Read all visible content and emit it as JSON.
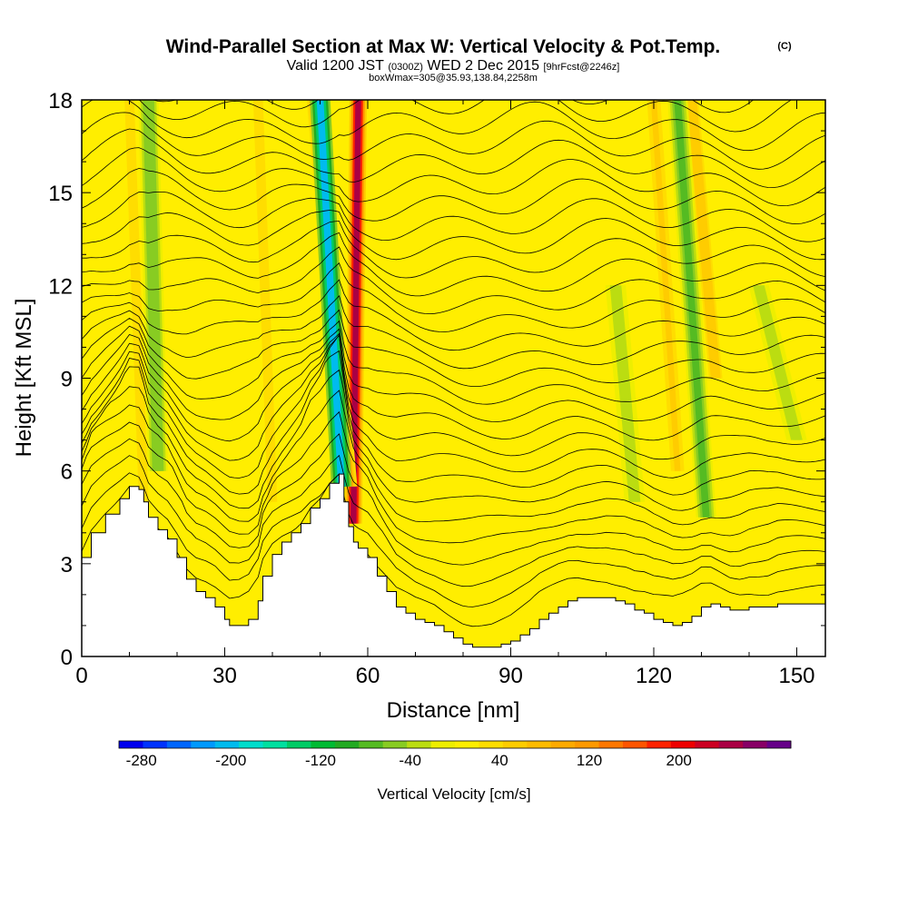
{
  "title": {
    "main": "Wind-Parallel Section at Max W: Vertical Velocity & Pot.Temp.",
    "copyright": "(C)",
    "valid_prefix": "Valid 1200 JST",
    "valid_utc": "(0300Z)",
    "valid_date": "WED 2 Dec 2015",
    "forecast": "[9hrFcst@2246z]",
    "box": "boxWmax=305@35.93,138.84,2258m"
  },
  "chart_data": {
    "type": "heatmap",
    "xlabel": "Distance [nm]",
    "ylabel": "Height [Kft MSL]",
    "xlim": [
      0,
      156
    ],
    "ylim": [
      0,
      18
    ],
    "x_ticks": [
      "0",
      "30",
      "60",
      "90",
      "120",
      "150"
    ],
    "y_ticks": [
      "0",
      "3",
      "6",
      "9",
      "12",
      "15",
      "18"
    ],
    "field": "Vertical Velocity",
    "field_units": "cm/s",
    "contour_field": "Potential Temperature",
    "background_value": 10,
    "terrain": {
      "x": [
        0,
        2,
        5,
        8,
        10,
        12,
        13,
        14,
        16,
        18,
        20,
        22,
        24,
        26,
        28,
        30,
        31,
        33,
        35,
        37,
        38,
        40,
        42,
        44,
        46,
        48,
        50,
        52,
        54,
        55,
        56,
        57,
        58,
        60,
        62,
        64,
        66,
        68,
        70,
        72,
        74,
        76,
        78,
        80,
        82,
        84,
        86,
        88,
        90,
        92,
        94,
        96,
        98,
        100,
        102,
        104,
        106,
        108,
        110,
        112,
        114,
        116,
        118,
        120,
        122,
        124,
        126,
        128,
        130,
        132,
        134,
        136,
        138,
        140,
        142,
        144,
        146,
        148,
        150,
        152,
        154,
        156
      ],
      "h": [
        3.2,
        4.0,
        4.6,
        5.1,
        5.5,
        5.4,
        5.0,
        4.5,
        4.1,
        3.8,
        3.2,
        2.5,
        2.1,
        1.9,
        1.6,
        1.2,
        1.0,
        1.0,
        1.2,
        1.8,
        2.6,
        3.3,
        3.7,
        4.0,
        4.3,
        4.8,
        5.1,
        5.6,
        5.9,
        5.0,
        4.2,
        3.7,
        3.5,
        3.2,
        2.6,
        2.1,
        1.6,
        1.4,
        1.2,
        1.1,
        1.0,
        0.8,
        0.6,
        0.4,
        0.3,
        0.3,
        0.3,
        0.4,
        0.5,
        0.7,
        0.9,
        1.2,
        1.4,
        1.6,
        1.8,
        1.9,
        1.9,
        1.9,
        1.9,
        1.8,
        1.7,
        1.5,
        1.4,
        1.2,
        1.1,
        1.0,
        1.1,
        1.3,
        1.6,
        1.7,
        1.6,
        1.5,
        1.5,
        1.6,
        1.6,
        1.6,
        1.7,
        1.7,
        1.7,
        1.7,
        1.7,
        1.7
      ]
    },
    "updraft_bands": [
      {
        "x_bottom": 57,
        "x_top": 58,
        "y_bottom": 4.3,
        "y_top": 18,
        "max_value": 240
      },
      {
        "x_bottom": 56,
        "x_top": 49,
        "y_bottom": 5.5,
        "y_top": 18,
        "max_value": 120
      },
      {
        "x_bottom": 133,
        "x_top": 128,
        "y_bottom": 9,
        "y_top": 18,
        "max_value": 60
      },
      {
        "x_bottom": 125,
        "x_top": 120,
        "y_bottom": 6,
        "y_top": 18,
        "max_value": 50
      },
      {
        "x_bottom": 40,
        "x_top": 37,
        "y_bottom": 5,
        "y_top": 18,
        "max_value": 40
      },
      {
        "x_bottom": 13,
        "x_top": 10,
        "y_bottom": 5,
        "y_top": 18,
        "max_value": 30
      }
    ],
    "downdraft_bands": [
      {
        "x_bottom": 54.5,
        "x_top": 50,
        "y_bottom": 5.5,
        "y_top": 18,
        "min_value": -200
      },
      {
        "x_bottom": 131,
        "x_top": 125,
        "y_bottom": 4.5,
        "y_top": 18,
        "min_value": -80
      },
      {
        "x_bottom": 116,
        "x_top": 112,
        "y_bottom": 5,
        "y_top": 12,
        "min_value": -40
      },
      {
        "x_bottom": 16,
        "x_top": 14,
        "y_bottom": 6,
        "y_top": 18,
        "min_value": -60
      },
      {
        "x_bottom": 150,
        "x_top": 142,
        "y_bottom": 7,
        "y_top": 12,
        "min_value": -30
      }
    ],
    "colorbar": {
      "label": "Vertical Velocity [cm/s]",
      "min": -300,
      "max": 300,
      "tick_labels": [
        "-280",
        "-200",
        "-120",
        "-40",
        "40",
        "120",
        "200"
      ],
      "tick_values": [
        -280,
        -200,
        -120,
        -40,
        40,
        120,
        200
      ],
      "colors": [
        "#0000ee",
        "#0033ff",
        "#0066ff",
        "#0099ff",
        "#00bbee",
        "#00ddcc",
        "#00e0a0",
        "#00cc66",
        "#00bb33",
        "#22aa22",
        "#55bb22",
        "#88cc22",
        "#bbdd11",
        "#eeee00",
        "#ffee00",
        "#ffdd00",
        "#ffcc00",
        "#ffbb00",
        "#ffaa00",
        "#ff9900",
        "#ff7700",
        "#ff5500",
        "#ff2200",
        "#ee0000",
        "#cc0022",
        "#aa0044",
        "#880066",
        "#660088"
      ]
    }
  }
}
